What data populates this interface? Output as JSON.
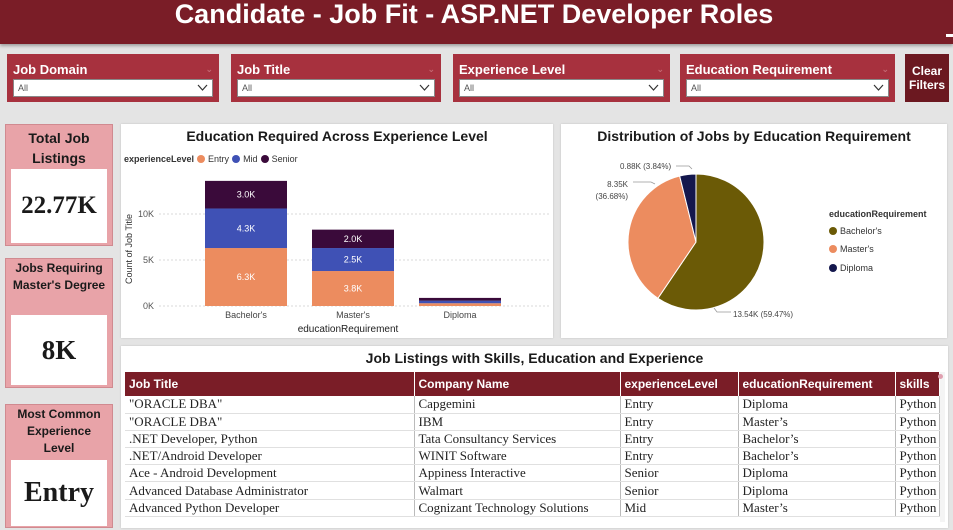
{
  "header": {
    "title": "Candidate - Job Fit - ASP.NET Developer Roles"
  },
  "slicers": [
    {
      "title": "Job Domain",
      "value": "All"
    },
    {
      "title": "Job Title",
      "value": "All"
    },
    {
      "title": "Experience Level",
      "value": "All"
    },
    {
      "title": "Education Requirement",
      "value": "All"
    }
  ],
  "clear_filters": {
    "label": "Clear Filters"
  },
  "kpis": {
    "total": {
      "title": "Total Job Listings",
      "value": "22.77K"
    },
    "masters": {
      "title": "Jobs Requiring Master's Degree",
      "value": "8K"
    },
    "common": {
      "title": "Most Common Experience Level",
      "value": "Entry"
    }
  },
  "colors": {
    "entry": "#ec8c5f",
    "mid": "#3f51b5",
    "senior": "#3a0a3a",
    "bachelors": "#6b5a06",
    "masters": "#ec8c5f",
    "diploma": "#14174d"
  },
  "bar_chart": {
    "title": "Education Required Across Experience Level",
    "legend_title": "experienceLevel",
    "ylabel": "Count of Job Title",
    "xlabel": "educationRequirement",
    "y_ticks": [
      "0K",
      "5K",
      "10K"
    ],
    "chart_data": {
      "type": "bar",
      "stacked": true,
      "categories": [
        "Bachelor's",
        "Master's",
        "Diploma"
      ],
      "series": [
        {
          "name": "Entry",
          "values": [
            6300,
            3800,
            300
          ],
          "labels": [
            "6.3K",
            "3.8K",
            ""
          ]
        },
        {
          "name": "Mid",
          "values": [
            4300,
            2500,
            280
          ],
          "labels": [
            "4.3K",
            "2.5K",
            ""
          ]
        },
        {
          "name": "Senior",
          "values": [
            3000,
            2000,
            300
          ],
          "labels": [
            "3.0K",
            "2.0K",
            ""
          ]
        }
      ],
      "ylim": [
        0,
        15000
      ]
    }
  },
  "pie_chart": {
    "title": "Distribution of Jobs by Education Requirement",
    "legend_title": "educationRequirement",
    "chart_data": {
      "type": "pie",
      "slices": [
        {
          "name": "Bachelor's",
          "value": 13.54,
          "label": "13.54K (59.47%)"
        },
        {
          "name": "Master's",
          "value": 8.35,
          "label_line1": "8.35K",
          "label_line2": "(36.68%)"
        },
        {
          "name": "Diploma",
          "value": 0.88,
          "label": "0.88K (3.84%)"
        }
      ]
    }
  },
  "table": {
    "title": "Job Listings with Skills, Education and Experience",
    "columns": [
      "Job Title",
      "Company Name",
      "experienceLevel",
      "educationRequirement",
      "skills"
    ],
    "rows": [
      [
        "\"ORACLE DBA\"",
        "Capgemini",
        "Entry",
        "Diploma",
        "Python"
      ],
      [
        "\"ORACLE DBA\"",
        "IBM",
        "Entry",
        "Master’s",
        "Python"
      ],
      [
        ".NET Developer, Python",
        "Tata Consultancy Services",
        "Entry",
        "Bachelor’s",
        "Python"
      ],
      [
        ".NET/Android Developer",
        "WINIT Software",
        "Entry",
        "Bachelor’s",
        "Python"
      ],
      [
        "Ace - Android Development",
        "Appiness Interactive",
        "Senior",
        "Diploma",
        "Python"
      ],
      [
        "Advanced Database Administrator",
        "Walmart",
        "Senior",
        "Diploma",
        "Python"
      ],
      [
        "Advanced Python Developer",
        "Cognizant Technology Solutions",
        "Mid",
        "Master’s",
        "Python"
      ]
    ]
  }
}
